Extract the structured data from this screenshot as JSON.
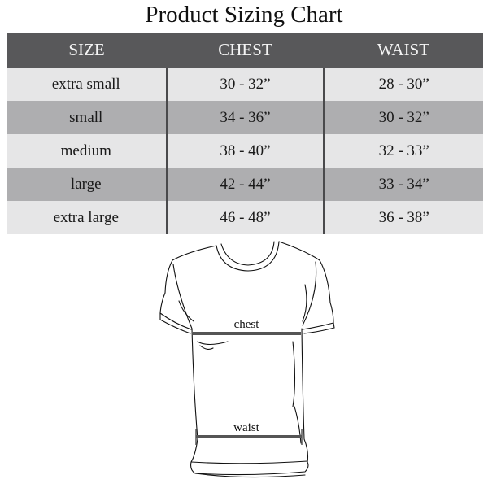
{
  "title": "Product Sizing Chart",
  "table": {
    "headers": [
      "SIZE",
      "CHEST",
      "WAIST"
    ],
    "rows": [
      [
        "extra small",
        "30 - 32”",
        "28 - 30”"
      ],
      [
        "small",
        "34 - 36”",
        "30 - 32”"
      ],
      [
        "medium",
        "38 - 40”",
        "32 - 33”"
      ],
      [
        "large",
        "42 - 44”",
        "33 - 34”"
      ],
      [
        "extra large",
        "46 - 48”",
        "36 - 38”"
      ]
    ]
  },
  "diagram": {
    "chest_label": "chest",
    "waist_label": "waist"
  },
  "colors": {
    "header_bg": "#58585a",
    "row_light": "#e6e6e7",
    "row_dark": "#aeaeb0",
    "measure_line": "#555555"
  }
}
